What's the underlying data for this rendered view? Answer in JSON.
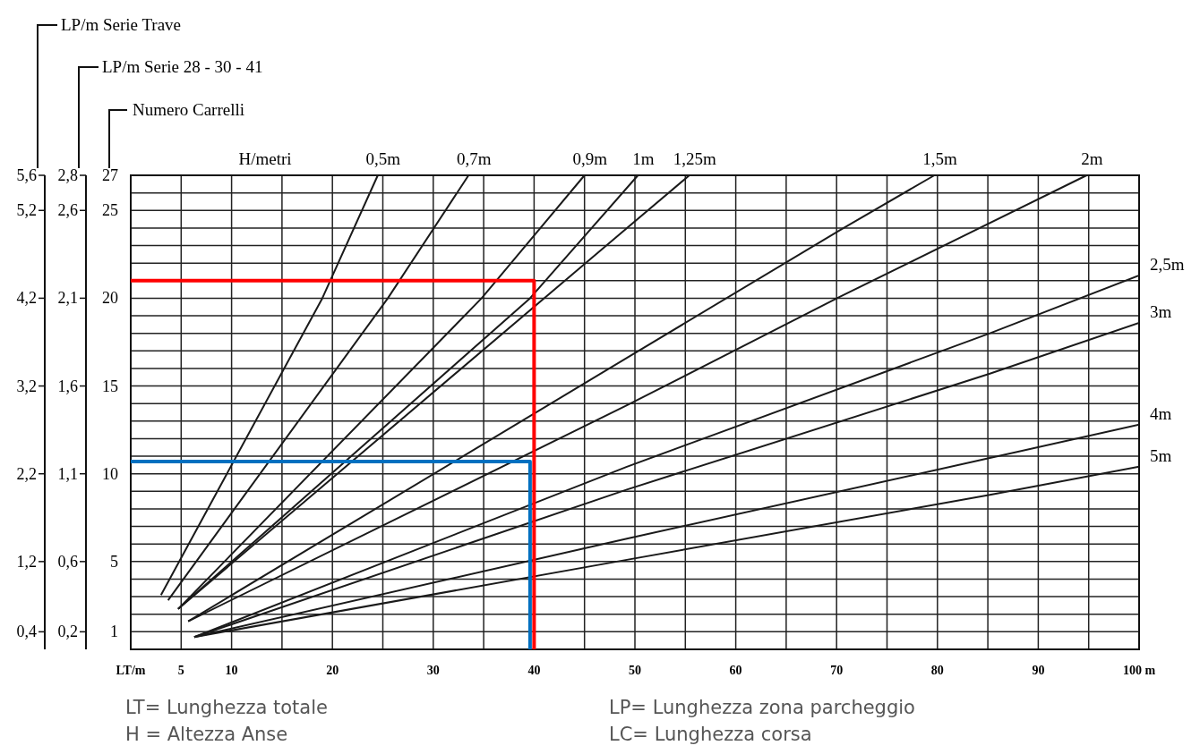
{
  "chart_data": {
    "type": "line",
    "xlabel": "LT/m",
    "ylabel": "Numero Carrelli",
    "y3label": "LP/m Serie Trave",
    "legend_title": "H/metri",
    "xlim": [
      0,
      100
    ],
    "ylim": [
      0,
      27
    ],
    "y2lim": [
      0.1,
      2.8
    ],
    "y3lim": [
      0.2,
      5.6
    ],
    "xticks": [
      {
        "value": 0,
        "label": null
      },
      5,
      10,
      {
        "value": 15,
        "label": null
      },
      20,
      {
        "value": 25,
        "label": null
      },
      30,
      {
        "value": 35,
        "label": null
      },
      40,
      {
        "value": 45,
        "label": null
      },
      50,
      {
        "value": 55,
        "label": null
      },
      60,
      {
        "value": 65,
        "label": null
      },
      70,
      {
        "value": 75,
        "label": null
      },
      80,
      {
        "value": 85,
        "label": null
      },
      90,
      {
        "value": 95,
        "label": null
      },
      {
        "value": 100,
        "label": "100 m"
      }
    ],
    "yticks": [
      {
        "value": 0,
        "label": null
      },
      1,
      {
        "value": 2,
        "label": null
      },
      {
        "value": 3,
        "label": null
      },
      {
        "value": 4,
        "label": null
      },
      5,
      {
        "value": 6,
        "label": null
      },
      {
        "value": 7,
        "label": null
      },
      {
        "value": 8,
        "label": null
      },
      {
        "value": 9,
        "label": null
      },
      10,
      {
        "value": 11,
        "label": null
      },
      {
        "value": 12,
        "label": null
      },
      {
        "value": 13,
        "label": null
      },
      {
        "value": 14,
        "label": null
      },
      15,
      {
        "value": 16,
        "label": null
      },
      {
        "value": 17,
        "label": null
      },
      {
        "value": 18,
        "label": null
      },
      {
        "value": 19,
        "label": null
      },
      20,
      {
        "value": 21,
        "label": null
      },
      {
        "value": 22,
        "label": null
      },
      {
        "value": 23,
        "label": null
      },
      {
        "value": 24,
        "label": null
      },
      25,
      {
        "value": 26,
        "label": null
      },
      27
    ],
    "y2ticks": [
      {
        "value": 0.2,
        "label": "0,2"
      },
      {
        "value": 0.6,
        "label": "0,6"
      },
      {
        "value": 1.1,
        "label": "1,1"
      },
      {
        "value": 1.6,
        "label": "1,6"
      },
      {
        "value": 2.1,
        "label": "2,1"
      },
      {
        "value": 2.6,
        "label": "2,6"
      },
      {
        "value": 2.8,
        "label": "2,8"
      }
    ],
    "y3ticks": [
      {
        "value": 0.4,
        "label": "0,4"
      },
      {
        "value": 1.2,
        "label": "1,2"
      },
      {
        "value": 2.2,
        "label": "2,2"
      },
      {
        "value": 3.2,
        "label": "3,2"
      },
      {
        "value": 4.2,
        "label": "4,2"
      },
      {
        "value": 5.2,
        "label": "5,2"
      },
      {
        "value": 5.6,
        "label": "5,6"
      }
    ],
    "grid": true,
    "series": [
      {
        "name": "0,5m",
        "color": "#1a1a1a",
        "x": [
          3,
          19,
          24.5
        ],
        "values": [
          3.1,
          20,
          27
        ]
      },
      {
        "name": "0,7m",
        "color": "#1a1a1a",
        "x": [
          3.7,
          25.5,
          33.5
        ],
        "values": [
          2.8,
          20,
          27
        ]
      },
      {
        "name": "0,9m",
        "color": "#1a1a1a",
        "x": [
          4.7,
          34.8,
          45
        ],
        "values": [
          2.3,
          20,
          27
        ]
      },
      {
        "name": "1m",
        "color": "#1a1a1a",
        "x": [
          4.7,
          39.6,
          50.3
        ],
        "values": [
          2.3,
          20,
          27
        ]
      },
      {
        "name": "1,25m",
        "color": "#1a1a1a",
        "x": [
          4.7,
          45.1,
          55.4
        ],
        "values": [
          2.3,
          22,
          27
        ]
      },
      {
        "name": "1,5m",
        "color": "#1a1a1a",
        "x": [
          5.7,
          49.2,
          70.4,
          79.7
        ],
        "values": [
          1.6,
          16.6,
          23.9,
          27
        ]
      },
      {
        "name": "2m",
        "color": "#1a1a1a",
        "x": [
          5.7,
          49.2,
          70.4,
          94.8
        ],
        "values": [
          1.6,
          13.9,
          20.1,
          27
        ]
      },
      {
        "name": "2,5m",
        "color": "#1a1a1a",
        "x": [
          6.3,
          49.2,
          85.2,
          100
        ],
        "values": [
          0.7,
          10.4,
          18,
          21.3
        ]
      },
      {
        "name": "3m",
        "color": "#1a1a1a",
        "x": [
          6.3,
          49.2,
          85.2,
          100
        ],
        "values": [
          0.7,
          9.1,
          15.7,
          18.6
        ]
      },
      {
        "name": "4m",
        "color": "#1a1a1a",
        "x": [
          6.3,
          49.2,
          85.2,
          100
        ],
        "values": [
          0.7,
          6.3,
          10.9,
          12.8
        ]
      },
      {
        "name": "5m",
        "color": "#1a1a1a",
        "x": [
          6.3,
          49.2,
          85.2,
          100
        ],
        "values": [
          0.7,
          5.1,
          8.8,
          10.4
        ]
      },
      {
        "color": "#ff0000",
        "x": [
          0,
          40,
          40
        ],
        "values": [
          21,
          21,
          0
        ]
      },
      {
        "color": "#0070c0",
        "x": [
          0,
          39.6,
          39.6
        ],
        "values": [
          10.7,
          10.7,
          0
        ]
      }
    ],
    "annotations": [
      "LT= Lunghezza totale",
      "LP= Lunghezza zona parcheggio",
      "H = Altezza Anse",
      "LC= Lunghezza corsa",
      "LP/m Serie 28 - 30 - 41"
    ]
  }
}
